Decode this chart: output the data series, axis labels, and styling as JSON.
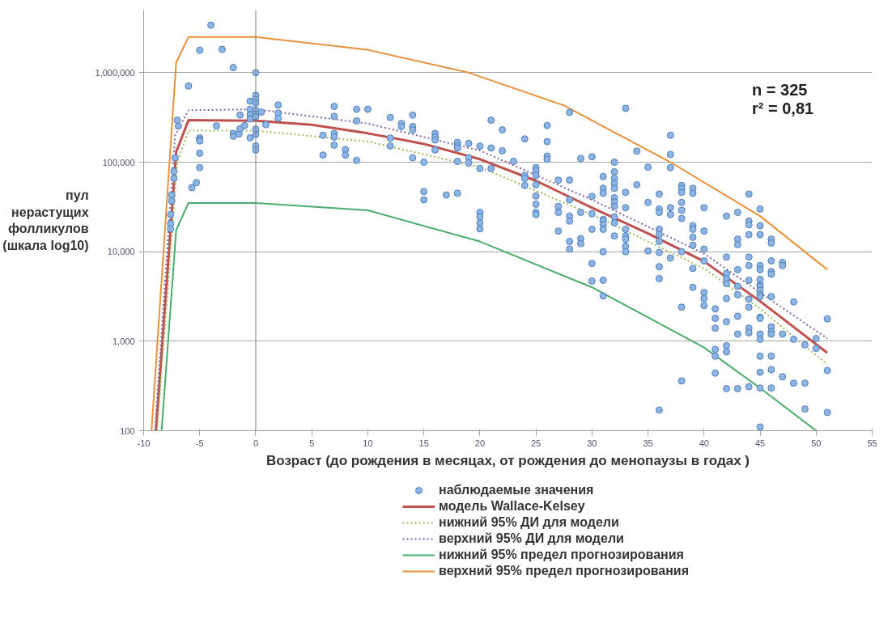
{
  "chart_data": {
    "type": "scatter",
    "xlabel": "Возраст (до рождения в месяцах, от рождения до менопаузы в годах )",
    "ylabel": "пул нерастущих фолликулов (шкала log10)",
    "annotations": [
      "n = 325",
      "r² = 0,81"
    ],
    "xlim": [
      -10,
      55
    ],
    "xticks": [
      -10,
      -5,
      0,
      5,
      10,
      15,
      20,
      25,
      30,
      35,
      40,
      45,
      50,
      55
    ],
    "ylim": [
      100,
      5000000
    ],
    "yticks": [
      100,
      {
        "value": 1000,
        "label": "1,000"
      },
      {
        "value": 10000,
        "label": "10,000"
      },
      {
        "value": 100000,
        "label": "100,000"
      },
      {
        "value": 1000000,
        "label": "1,000,000"
      }
    ],
    "log": "y",
    "grid": "y",
    "legend": "bottom",
    "ref_lines": [
      {
        "axis": "x",
        "value": 0,
        "color": "#808080"
      }
    ],
    "series": [
      {
        "name": "наблюдаемые значения",
        "marker": "circle",
        "color": "#8db4e2",
        "x": [
          -7.6,
          -7.6,
          -7.6,
          -7.5,
          -7.5,
          -7.3,
          -7.3,
          -7.2,
          -7,
          -6.9,
          -6,
          -5.7,
          -5.3,
          -5,
          -5,
          -5,
          -5,
          -5,
          -5,
          -4,
          -3.5,
          -3,
          -2,
          -2,
          -2,
          -1.5,
          -1.4,
          -1.4,
          -1,
          -0.5,
          -0.5,
          -0.5,
          -0.5,
          -0.5,
          0,
          0,
          0,
          0,
          0,
          0,
          0,
          0,
          0,
          0,
          0,
          0.5,
          0.9,
          2,
          2,
          2,
          6,
          6,
          7,
          7,
          7,
          7,
          7,
          8,
          8,
          9,
          9,
          9,
          10,
          12,
          12,
          12,
          13,
          13,
          14,
          14,
          14,
          14,
          15,
          15,
          15,
          16,
          16,
          16,
          16,
          17,
          18,
          18,
          18,
          18,
          18,
          19,
          19,
          19,
          20,
          20,
          20,
          20,
          20,
          20,
          21,
          21,
          21,
          22,
          22,
          23,
          24,
          24,
          24,
          24,
          25,
          25,
          25,
          25,
          25,
          25,
          25,
          25,
          26,
          26,
          26,
          26,
          27,
          27,
          27,
          27,
          28,
          28,
          28,
          28,
          28,
          28,
          28,
          29,
          29,
          29,
          29,
          30,
          30,
          30,
          30,
          30,
          30,
          31,
          31,
          31,
          31,
          31,
          31,
          31,
          31,
          31,
          31,
          32,
          32,
          32,
          32,
          32,
          32,
          32,
          32,
          32,
          32,
          32,
          33,
          33,
          33,
          33,
          33,
          33,
          33,
          33,
          34,
          34,
          35,
          35,
          35,
          36,
          36,
          36,
          36,
          36,
          36,
          36,
          36,
          36,
          36,
          37,
          37,
          37,
          37,
          37,
          37,
          38,
          38,
          38,
          38,
          38,
          38,
          38,
          38,
          38,
          39,
          39,
          39,
          39,
          39,
          39,
          39,
          39,
          40,
          40,
          40,
          40,
          40,
          40,
          40,
          41,
          41,
          41,
          41,
          41,
          41,
          42,
          42,
          42,
          42,
          42,
          42,
          42,
          42,
          42,
          42,
          43,
          43,
          43,
          43,
          43,
          43,
          43,
          43,
          43,
          44,
          44,
          44,
          44,
          44,
          44,
          44,
          44,
          44,
          44,
          44,
          44,
          45,
          45,
          45,
          45,
          45,
          45,
          45,
          45,
          45,
          45,
          45,
          45,
          45,
          45,
          45,
          45,
          45,
          45,
          45,
          46,
          46,
          46,
          46,
          46,
          46,
          46,
          46,
          46,
          46,
          46,
          46,
          47,
          47,
          47,
          47,
          48,
          48,
          48,
          49,
          49,
          49,
          50,
          50,
          51,
          51,
          51
        ],
        "values": [
          26000,
          20500,
          18000,
          43000,
          37000,
          79000,
          66000,
          112000,
          295000,
          253000,
          710000,
          52000,
          59000,
          1780000,
          187000,
          178000,
          173000,
          126000,
          87000,
          3400000,
          254000,
          1820000,
          1140000,
          209000,
          195000,
          206000,
          236000,
          336000,
          257000,
          480000,
          389000,
          340000,
          305000,
          187000,
          1000000,
          560000,
          500000,
          457000,
          380000,
          345000,
          323000,
          234000,
          204000,
          152000,
          137000,
          363000,
          263000,
          436000,
          354000,
          309000,
          200000,
          120000,
          420000,
          325000,
          209000,
          191000,
          155000,
          138000,
          120000,
          390000,
          289000,
          105000,
          390000,
          316000,
          186000,
          152000,
          270000,
          250000,
          336000,
          250000,
          230000,
          112000,
          100000,
          47000,
          38000,
          209000,
          190000,
          177000,
          137000,
          43000,
          166000,
          153000,
          144000,
          102000,
          45000,
          162000,
          112000,
          98000,
          151000,
          85000,
          27500,
          24500,
          21000,
          18000,
          295000,
          144000,
          85000,
          230000,
          134000,
          102000,
          182000,
          71000,
          66000,
          55000,
          87000,
          80000,
          71000,
          56000,
          42000,
          34000,
          27500,
          26000,
          257000,
          170000,
          117000,
          108000,
          63000,
          32000,
          27500,
          17000,
          360000,
          63000,
          38000,
          25000,
          22000,
          13000,
          10700,
          110000,
          27500,
          14000,
          12300,
          115000,
          41500,
          26500,
          17800,
          7400,
          4700,
          69000,
          51000,
          45000,
          23000,
          22000,
          20000,
          17800,
          10000,
          4800,
          3200,
          100000,
          78000,
          66000,
          58000,
          51000,
          40000,
          36000,
          32000,
          24500,
          21000,
          15000,
          400000,
          46000,
          31000,
          17800,
          15000,
          13800,
          11500,
          10000,
          133000,
          56000,
          88000,
          35500,
          10200,
          44000,
          30000,
          27500,
          17800,
          15500,
          13000,
          9800,
          6800,
          5000,
          170,
          200000,
          122000,
          87000,
          31000,
          26000,
          8500,
          55000,
          51000,
          46000,
          35500,
          29000,
          23500,
          10000,
          2400,
          360,
          51000,
          45000,
          19500,
          17800,
          14500,
          11800,
          6500,
          4000,
          31000,
          17000,
          10700,
          7900,
          3500,
          3000,
          2500,
          2300,
          1800,
          1400,
          810,
          680,
          440,
          25000,
          8700,
          5700,
          5000,
          4400,
          3000,
          1650,
          890,
          760,
          295,
          27500,
          13800,
          12000,
          6300,
          4100,
          3300,
          1900,
          1200,
          295,
          44000,
          22000,
          20000,
          15500,
          8700,
          7000,
          4800,
          2950,
          2400,
          1400,
          1240,
          310,
          30000,
          19500,
          15500,
          7000,
          6300,
          4900,
          4250,
          4100,
          3700,
          3300,
          3150,
          1850,
          1800,
          1200,
          1050,
          680,
          450,
          300,
          110,
          13800,
          12500,
          7900,
          6000,
          5600,
          3150,
          1450,
          1280,
          1200,
          680,
          480,
          300,
          7600,
          7000,
          1200,
          400,
          2750,
          1050,
          340,
          910,
          340,
          175,
          1070,
          830,
          1780,
          470,
          160
        ]
      },
      {
        "name": "модель Wallace-Kelsey",
        "type": "line",
        "line_style": "solid",
        "color": "#c0504d",
        "x": [
          -8.9,
          -7.1,
          -6,
          0,
          5,
          10,
          15,
          20,
          25,
          30,
          35,
          40,
          45,
          51
        ],
        "values": [
          100,
          130000,
          295000,
          290000,
          262000,
          210000,
          160000,
          108000,
          62000,
          31000,
          16000,
          7800,
          2800,
          740
        ]
      },
      {
        "name": "нижний 95% ДИ для модели",
        "type": "line",
        "line_style": "dotted",
        "color": "#9bbb59",
        "x": [
          -8.8,
          -7,
          -6,
          0,
          10,
          20,
          30,
          40,
          45,
          51
        ],
        "values": [
          100,
          100000,
          225000,
          225000,
          170000,
          88000,
          26000,
          6500,
          2300,
          550
        ]
      },
      {
        "name": "верхний 95% ДИ для модели",
        "type": "line",
        "line_style": "dotted",
        "color": "#8064a2",
        "x": [
          -9,
          -7.2,
          -6,
          0,
          10,
          20,
          30,
          40,
          45,
          51
        ],
        "values": [
          100,
          200000,
          380000,
          390000,
          270000,
          135000,
          38000,
          9500,
          3500,
          1070
        ]
      },
      {
        "name": "нижний 95% предел прогнозирования",
        "type": "line",
        "line_style": "solid",
        "color": "#4aac6a",
        "x": [
          -8.4,
          -7.1,
          -6,
          0,
          10,
          20,
          30,
          40,
          45,
          50
        ],
        "values": [
          100,
          17500,
          35000,
          35000,
          29000,
          13000,
          4000,
          850,
          300,
          100
        ]
      },
      {
        "name": "верхний 95% предел прогнозирования",
        "type": "line",
        "line_style": "solid",
        "color": "#e8913a",
        "x": [
          -9.3,
          -7.1,
          -6,
          0,
          10,
          19,
          27.5,
          37,
          45,
          51
        ],
        "values": [
          100,
          1300000,
          2500000,
          2500000,
          1800000,
          1000000,
          430000,
          100000,
          25000,
          6300
        ]
      }
    ]
  }
}
